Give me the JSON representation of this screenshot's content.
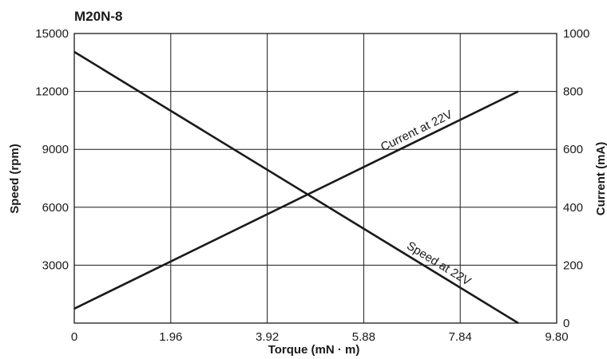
{
  "chart_data": {
    "type": "line",
    "title": "M20N-8",
    "xlabel": "Torque (mN · m)",
    "ylabel_left": "Speed (rpm)",
    "ylabel_right": "Current (mA)",
    "xlim": [
      0,
      9.8
    ],
    "ylim_left": [
      0,
      15000
    ],
    "ylim_right": [
      0,
      1000
    ],
    "x_ticks": [
      "0",
      "1.96",
      "3.92",
      "5.88",
      "7.84",
      "9.80"
    ],
    "x_tick_values": [
      0,
      1.96,
      3.92,
      5.88,
      7.84,
      9.8
    ],
    "y_left_ticks": [
      "3000",
      "6000",
      "9000",
      "12000",
      "15000"
    ],
    "y_left_tick_values": [
      3000,
      6000,
      9000,
      12000,
      15000
    ],
    "y_right_ticks": [
      "0",
      "200",
      "400",
      "600",
      "800",
      "1000"
    ],
    "y_right_tick_values": [
      0,
      200,
      400,
      600,
      800,
      1000
    ],
    "grid": true,
    "series": [
      {
        "name": "Speed at 22V",
        "axis": "left",
        "x": [
          0,
          9.02
        ],
        "y": [
          14050,
          0
        ]
      },
      {
        "name": "Current at 22V",
        "axis": "right",
        "x": [
          0,
          9.02
        ],
        "y": [
          50,
          800
        ]
      }
    ],
    "colors": {
      "line": "#1a1a1a",
      "grid": "#1a1a1a",
      "text": "#1a1a1a"
    }
  }
}
